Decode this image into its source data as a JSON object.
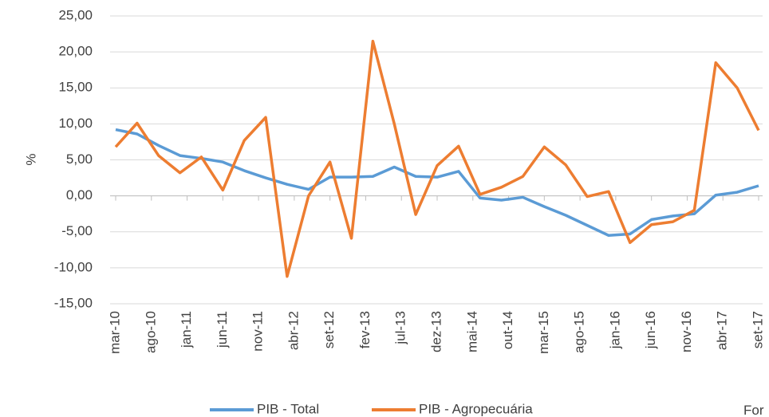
{
  "chart_data": {
    "type": "line",
    "y_axis_label": "%",
    "x": [
      0,
      3,
      6,
      9,
      12,
      15,
      18,
      21,
      24,
      27,
      30,
      33,
      36,
      39,
      42,
      45,
      48,
      51,
      54,
      57,
      60,
      63,
      66,
      69,
      72,
      75,
      78,
      81,
      84,
      87,
      90
    ],
    "xlim": [
      0,
      90
    ],
    "xticks": [
      {
        "value": 0,
        "label": "mar-10"
      },
      {
        "value": 5,
        "label": "ago-10"
      },
      {
        "value": 10,
        "label": "jan-11"
      },
      {
        "value": 15,
        "label": "jun-11"
      },
      {
        "value": 20,
        "label": "nov-11"
      },
      {
        "value": 25,
        "label": "abr-12"
      },
      {
        "value": 30,
        "label": "set-12"
      },
      {
        "value": 35,
        "label": "fev-13"
      },
      {
        "value": 40,
        "label": "jul-13"
      },
      {
        "value": 45,
        "label": "dez-13"
      },
      {
        "value": 50,
        "label": "mai-14"
      },
      {
        "value": 55,
        "label": "out-14"
      },
      {
        "value": 60,
        "label": "mar-15"
      },
      {
        "value": 65,
        "label": "ago-15"
      },
      {
        "value": 70,
        "label": "jan-16"
      },
      {
        "value": 75,
        "label": "jun-16"
      },
      {
        "value": 80,
        "label": "nov-16"
      },
      {
        "value": 85,
        "label": "abr-17"
      },
      {
        "value": 90,
        "label": "set-17"
      }
    ],
    "ylim": [
      -15,
      25
    ],
    "yticks": [
      {
        "value": -15,
        "label": "-15,00"
      },
      {
        "value": -10,
        "label": "-10,00"
      },
      {
        "value": -5,
        "label": "-5,00"
      },
      {
        "value": 0,
        "label": "0,00"
      },
      {
        "value": 5,
        "label": "5,00"
      },
      {
        "value": 10,
        "label": "10,00"
      },
      {
        "value": 15,
        "label": "15,00"
      },
      {
        "value": 20,
        "label": "20,00"
      },
      {
        "value": 25,
        "label": "25,00"
      }
    ],
    "grid": true,
    "legend_position": "bottom",
    "series": [
      {
        "name": "PIB - Total",
        "color": "#5b9bd5",
        "values": [
          9.2,
          8.6,
          7.0,
          5.6,
          5.2,
          4.7,
          3.5,
          2.5,
          1.6,
          0.9,
          2.6,
          2.6,
          2.7,
          4.0,
          2.7,
          2.6,
          3.4,
          -0.3,
          -0.6,
          -0.2,
          -1.5,
          -2.7,
          -4.1,
          -5.5,
          -5.3,
          -3.3,
          -2.8,
          -2.5,
          0.1,
          0.5,
          1.4
        ]
      },
      {
        "name": "PIB - Agropecuária",
        "color": "#ed7d31",
        "values": [
          6.8,
          10.1,
          5.6,
          3.2,
          5.4,
          0.8,
          7.7,
          10.9,
          -11.2,
          0.0,
          4.7,
          -5.9,
          21.5,
          10.0,
          -2.6,
          4.2,
          6.9,
          0.2,
          1.2,
          2.7,
          6.8,
          4.3,
          -0.1,
          0.6,
          -6.5,
          -4.0,
          -3.6,
          -2.0,
          18.5,
          15.0,
          9.1
        ]
      }
    ],
    "footer_text": "For"
  }
}
